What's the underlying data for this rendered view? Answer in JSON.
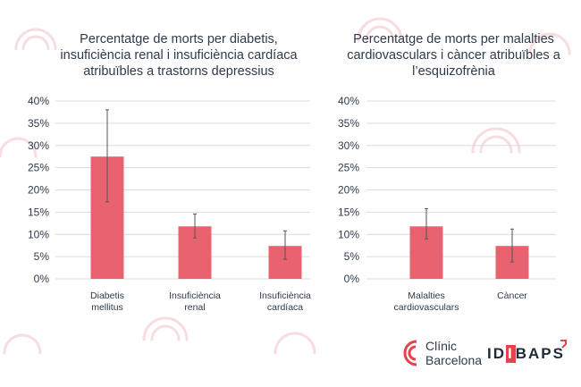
{
  "colors": {
    "bar": "#e8636f",
    "bar_stroke": "#e15a67",
    "axis_text": "#2f3a4a",
    "grid": "#dcdcdc",
    "error_bar": "#555555",
    "decor": "#f7dde0",
    "logo_red": "#e3434b"
  },
  "chart_data": [
    {
      "type": "bar",
      "title": "Percentatge de morts per diabetis, insuficiència renal i insuficiència cardíaca atribuïbles a trastorns depressius",
      "categories": [
        "Diabetis mellitus",
        "Insuficiència renal",
        "Insuficiència cardíaca"
      ],
      "category_lines": [
        [
          "Diabetis",
          "mellitus"
        ],
        [
          "Insuficiència",
          "renal"
        ],
        [
          "Insuficiència",
          "cardíaca"
        ]
      ],
      "values": [
        27.5,
        11.8,
        7.4
      ],
      "error_low": [
        17.3,
        9.2,
        4.4
      ],
      "error_high": [
        38.0,
        14.6,
        10.8
      ],
      "ylim": [
        0,
        40
      ],
      "yticks": [
        "0%",
        "5%",
        "10%",
        "15%",
        "20%",
        "25%",
        "30%",
        "35%",
        "40%"
      ],
      "grid": true
    },
    {
      "type": "bar",
      "title": "Percentatge de morts per malalties cardiovasculars i càncer atribuïbles a l’esquizofrènia",
      "categories": [
        "Malalties cardiovasculars",
        "Càncer"
      ],
      "category_lines": [
        [
          "Malalties",
          "cardiovasculars"
        ],
        [
          "Càncer"
        ]
      ],
      "values": [
        11.8,
        7.4
      ],
      "error_low": [
        9.0,
        3.8
      ],
      "error_high": [
        15.8,
        11.2
      ],
      "ylim": [
        0,
        40
      ],
      "yticks": [
        "0%",
        "5%",
        "10%",
        "15%",
        "20%",
        "25%",
        "30%",
        "35%",
        "40%"
      ],
      "grid": true
    }
  ],
  "logos": {
    "clinic_line1": "Clínic",
    "clinic_line2": "Barcelona",
    "idibaps_prefix": "ID",
    "idibaps_block": "I",
    "idibaps_suffix": "BAPS"
  }
}
